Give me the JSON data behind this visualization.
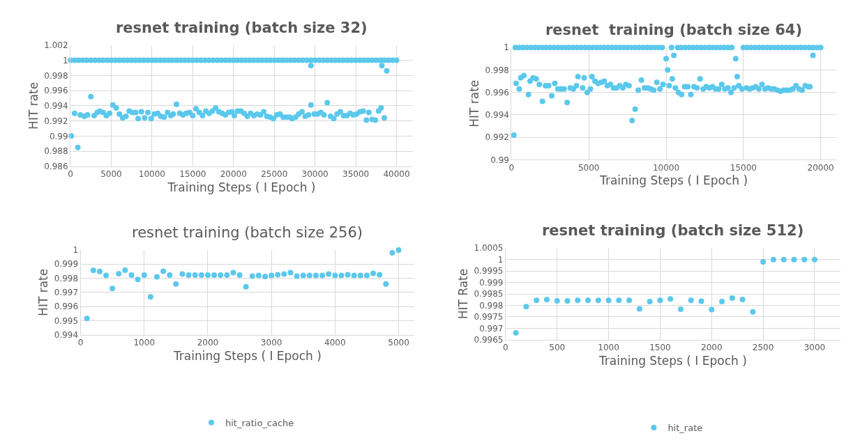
{
  "chart_data": [
    {
      "type": "scatter",
      "title": "resnet training (batch size 32)",
      "xlabel": "Training Steps ( I Epoch )",
      "ylabel": "HIT rate",
      "xlim": [
        0,
        42000
      ],
      "xticks": [
        0,
        5000,
        10000,
        15000,
        20000,
        25000,
        30000,
        35000,
        40000
      ],
      "ylim": [
        0.986,
        1.002
      ],
      "yticks": [
        0.986,
        0.988,
        0.99,
        0.992,
        0.994,
        0.996,
        0.998,
        1,
        1.002
      ],
      "grid": true,
      "marker": "circle",
      "series": [
        {
          "color": "#5bc8ec",
          "x": [
            0,
            500,
            1000,
            1500,
            2000,
            2500,
            3000,
            3500,
            4000,
            4500,
            5000,
            5500,
            6000,
            6500,
            7000,
            7500,
            8000,
            8500,
            9000,
            9500,
            10000,
            10500,
            11000,
            11500,
            12000,
            12500,
            13000,
            13500,
            14000,
            14500,
            15000,
            15500,
            16000,
            16500,
            17000,
            17500,
            18000,
            18500,
            19000,
            19500,
            20000,
            20500,
            21000,
            21500,
            22000,
            22500,
            23000,
            23500,
            24000,
            24500,
            25000,
            25500,
            26000,
            26500,
            27000,
            27500,
            28000,
            28500,
            29000,
            29500,
            30000,
            30500,
            31000,
            31500,
            32000,
            32500,
            33000,
            33500,
            34000,
            34500,
            35000,
            35500,
            36000,
            36500,
            37000,
            37500,
            38000,
            38500,
            39000,
            39500,
            40000
          ],
          "values": [
            1,
            1,
            1,
            1,
            1,
            1,
            1,
            1,
            1,
            1,
            1,
            1,
            1,
            1,
            1,
            1,
            1,
            1,
            1,
            1,
            1,
            1,
            1,
            1,
            1,
            1,
            1,
            1,
            1,
            1,
            1,
            1,
            1,
            1,
            1,
            1,
            1,
            1,
            1,
            1,
            1,
            1,
            1,
            1,
            1,
            1,
            1,
            1,
            1,
            1,
            1,
            1,
            1,
            1,
            1,
            1,
            1,
            1,
            1,
            1,
            1,
            1,
            1,
            1,
            1,
            1,
            1,
            1,
            1,
            1,
            1,
            1,
            1,
            1,
            1,
            1,
            1,
            1,
            1,
            1,
            1
          ]
        },
        {
          "color": "#5bc8ec",
          "x": [
            100,
            500,
            900,
            1200,
            1700,
            2100,
            2500,
            2900,
            3300,
            3600,
            4000,
            4400,
            4800,
            5200,
            5600,
            6000,
            6400,
            6800,
            7200,
            7600,
            8000,
            8300,
            8700,
            9100,
            9500,
            9900,
            10300,
            10700,
            11100,
            11500,
            11900,
            12300,
            12600,
            13000,
            13400,
            13800,
            14200,
            14600,
            15000,
            15400,
            15800,
            16200,
            16600,
            17000,
            17400,
            17800,
            18200,
            18600,
            19000,
            19400,
            19800,
            20100,
            20500,
            20900,
            21300,
            21700,
            22100,
            22500,
            22900,
            23300,
            23700,
            24100,
            24500,
            24900,
            25300,
            25700,
            26100,
            26500,
            26900,
            27200,
            27600,
            28000,
            28400,
            28800,
            29200,
            29500,
            29900,
            30300,
            30700,
            31100,
            31500,
            31900,
            32300,
            32700,
            33100,
            33500,
            33900,
            34300,
            34700,
            35100,
            35500,
            35900,
            36300,
            36600,
            37000,
            37400,
            37800,
            38100,
            38500,
            29500,
            38200,
            38800
          ],
          "values": [
            0.99,
            0.993,
            0.9885,
            0.9928,
            0.9926,
            0.9928,
            0.9952,
            0.9927,
            0.9931,
            0.9933,
            0.9931,
            0.9927,
            0.993,
            0.9941,
            0.9937,
            0.9929,
            0.9924,
            0.9926,
            0.9933,
            0.9931,
            0.9931,
            0.9923,
            0.9932,
            0.9924,
            0.9931,
            0.9923,
            0.9929,
            0.993,
            0.9926,
            0.9925,
            0.9931,
            0.9927,
            0.9929,
            0.9942,
            0.993,
            0.9928,
            0.993,
            0.9931,
            0.9927,
            0.9936,
            0.9931,
            0.9927,
            0.9933,
            0.993,
            0.9933,
            0.9937,
            0.9932,
            0.993,
            0.9928,
            0.9931,
            0.9932,
            0.9927,
            0.9933,
            0.9933,
            0.993,
            0.9926,
            0.993,
            0.9927,
            0.9929,
            0.9928,
            0.9932,
            0.9926,
            0.9925,
            0.9923,
            0.9928,
            0.9929,
            0.9925,
            0.9925,
            0.9925,
            0.9923,
            0.9925,
            0.9929,
            0.9932,
            0.9926,
            0.9928,
            0.9941,
            0.9929,
            0.9929,
            0.9931,
            0.9928,
            0.9944,
            0.9926,
            0.9923,
            0.9929,
            0.9932,
            0.9927,
            0.9927,
            0.993,
            0.9928,
            0.9929,
            0.9932,
            0.9933,
            0.9921,
            0.9931,
            0.9922,
            0.9921,
            0.9933,
            0.9937,
            0.9924,
            0.9993,
            0.9993,
            0.9986
          ]
        }
      ]
    },
    {
      "type": "scatter",
      "title": "resnet  training (batch size 64)",
      "xlabel": "Training Steps ( I Epoch )",
      "ylabel": "HIT rate",
      "xlim": [
        0,
        21000
      ],
      "xticks": [
        0,
        5000,
        10000,
        15000,
        20000
      ],
      "ylim": [
        0.99,
        1
      ],
      "yticks": [
        0.99,
        0.992,
        0.994,
        0.996,
        0.998,
        1
      ],
      "grid": true,
      "marker": "circle",
      "series": [
        {
          "color": "#5bc8ec",
          "x": [
            250,
            500,
            750,
            1000,
            1250,
            1500,
            1750,
            2000,
            2250,
            2500,
            2750,
            3000,
            3250,
            3500,
            3750,
            4000,
            4250,
            4500,
            4750,
            5000,
            5250,
            5500,
            5750,
            6000,
            6250,
            6500,
            6750,
            7000,
            7250,
            7500,
            7750,
            8000,
            8250,
            8500,
            8750,
            9000,
            9250,
            9500,
            9750,
            10350,
            10750,
            11000,
            11250,
            11500,
            11750,
            12000,
            12250,
            12500,
            12750,
            13000,
            13250,
            13500,
            13750,
            14000,
            14250,
            15000,
            15250,
            15500,
            15750,
            16000,
            16250,
            16500,
            16750,
            17000,
            17250,
            17500,
            17750,
            18000,
            18250,
            18500,
            18750,
            19000,
            19250,
            19500,
            19750,
            20000
          ],
          "values": [
            1,
            1,
            1,
            1,
            1,
            1,
            1,
            1,
            1,
            1,
            1,
            1,
            1,
            1,
            1,
            1,
            1,
            1,
            1,
            1,
            1,
            1,
            1,
            1,
            1,
            1,
            1,
            1,
            1,
            1,
            1,
            1,
            1,
            1,
            1,
            1,
            1,
            1,
            1,
            1,
            1,
            1,
            1,
            1,
            1,
            1,
            1,
            1,
            1,
            1,
            1,
            1,
            1,
            1,
            1,
            1,
            1,
            1,
            1,
            1,
            1,
            1,
            1,
            1,
            1,
            1,
            1,
            1,
            1,
            1,
            1,
            1,
            1,
            1,
            1,
            1
          ]
        },
        {
          "color": "#5bc8ec",
          "x": [
            150,
            300,
            500,
            600,
            800,
            1100,
            1200,
            1400,
            1600,
            1800,
            2000,
            2200,
            2400,
            2600,
            2800,
            3000,
            3200,
            3400,
            3600,
            3800,
            4000,
            4200,
            4300,
            4600,
            4700,
            4900,
            5100,
            5200,
            5400,
            5600,
            5800,
            6000,
            6200,
            6400,
            6600,
            6800,
            7000,
            7200,
            7400,
            7600,
            7800,
            8000,
            8200,
            8400,
            8600,
            8800,
            9000,
            9200,
            9400,
            9600,
            9800,
            10000,
            10100,
            10200,
            10400,
            10500,
            10600,
            10800,
            11000,
            11200,
            11400,
            11600,
            11800,
            12000,
            12200,
            12400,
            12600,
            12800,
            13000,
            13200,
            13400,
            13600,
            13800,
            14000,
            14200,
            14400,
            14500,
            14600,
            14700,
            14900,
            15200,
            15400,
            15600,
            15800,
            16000,
            16200,
            16400,
            16600,
            16800,
            17000,
            17200,
            17400,
            17600,
            17800,
            18000,
            18200,
            18400,
            18600,
            18800,
            19000,
            19200,
            19300,
            19500
          ],
          "values": [
            0.9922,
            0.9968,
            0.9963,
            0.9973,
            0.9975,
            0.9958,
            0.997,
            0.9973,
            0.9972,
            0.9967,
            0.9952,
            0.9966,
            0.9966,
            0.9957,
            0.9968,
            0.9963,
            0.9963,
            0.9963,
            0.9951,
            0.9964,
            0.9963,
            0.9966,
            0.9974,
            0.9964,
            0.9973,
            0.996,
            0.9963,
            0.9974,
            0.997,
            0.9968,
            0.9969,
            0.997,
            0.9966,
            0.9967,
            0.9964,
            0.9964,
            0.9966,
            0.9964,
            0.9967,
            0.9966,
            0.9935,
            0.9945,
            0.9962,
            0.9971,
            0.9964,
            0.9964,
            0.9963,
            0.9962,
            0.9969,
            0.9963,
            0.9967,
            0.999,
            0.998,
            0.9966,
            0.9972,
            0.9993,
            0.9964,
            0.996,
            0.9958,
            0.9965,
            0.9965,
            0.9958,
            0.9965,
            0.9964,
            0.9972,
            0.9963,
            0.9965,
            0.9964,
            0.9965,
            0.9963,
            0.9963,
            0.9967,
            0.9963,
            0.9964,
            0.996,
            0.9964,
            0.999,
            0.9974,
            0.9966,
            0.9963,
            0.9964,
            0.9963,
            0.9964,
            0.9965,
            0.9963,
            0.9967,
            0.9963,
            0.9964,
            0.9963,
            0.9963,
            0.9962,
            0.9961,
            0.9962,
            0.9962,
            0.9962,
            0.9963,
            0.9966,
            0.9963,
            0.9962,
            0.9966,
            0.9965,
            0.9965,
            0.9993
          ]
        }
      ]
    },
    {
      "type": "scatter",
      "title": "resnet training (batch size 256)",
      "xlabel": "Training Steps ( I Epoch )",
      "ylabel": "HIT rate",
      "xlim": [
        0,
        5250
      ],
      "xticks": [
        0,
        1000,
        2000,
        3000,
        4000,
        5000
      ],
      "ylim": [
        0.994,
        1
      ],
      "yticks": [
        0.994,
        0.995,
        0.996,
        0.997,
        0.998,
        0.999,
        1
      ],
      "grid": true,
      "marker": "circle",
      "legend": "bottom",
      "series": [
        {
          "name": "hit_ratio_cache",
          "color": "#5bc8ec",
          "x": [
            100,
            200,
            300,
            400,
            500,
            600,
            700,
            800,
            900,
            1000,
            1100,
            1200,
            1300,
            1400,
            1500,
            1600,
            1700,
            1800,
            1900,
            2000,
            2100,
            2200,
            2300,
            2400,
            2500,
            2600,
            2700,
            2800,
            2900,
            3000,
            3100,
            3200,
            3300,
            3400,
            3500,
            3600,
            3700,
            3800,
            3900,
            4000,
            4100,
            4200,
            4300,
            4400,
            4500,
            4600,
            4700,
            4800,
            4900,
            5000
          ],
          "values": [
            0.99515,
            0.99855,
            0.99848,
            0.9982,
            0.99728,
            0.99832,
            0.99857,
            0.99822,
            0.99792,
            0.99822,
            0.99668,
            0.9981,
            0.9985,
            0.99822,
            0.9976,
            0.9983,
            0.99822,
            0.99822,
            0.99822,
            0.99822,
            0.99822,
            0.99822,
            0.99822,
            0.9984,
            0.99822,
            0.9974,
            0.99815,
            0.9982,
            0.99813,
            0.9982,
            0.99825,
            0.9983,
            0.9984,
            0.99815,
            0.9982,
            0.9982,
            0.9982,
            0.9982,
            0.9983,
            0.9982,
            0.9982,
            0.99825,
            0.9982,
            0.9982,
            0.9982,
            0.99835,
            0.99825,
            0.9976,
            0.9998,
            1
          ]
        }
      ]
    },
    {
      "type": "scatter",
      "title": "resnet training (batch size 512)",
      "xlabel": "Training Steps ( I Epoch )",
      "ylabel": "HIT Rate",
      "xlim": [
        0,
        3250
      ],
      "xticks": [
        0,
        500,
        1000,
        1500,
        2000,
        2500,
        3000
      ],
      "ylim": [
        0.9965,
        1.0005
      ],
      "yticks": [
        0.9965,
        0.997,
        0.9975,
        0.998,
        0.9985,
        0.999,
        0.9995,
        1,
        1.0005
      ],
      "grid": true,
      "marker": "circle",
      "legend": "bottom",
      "series": [
        {
          "name": "hit_rate",
          "color": "#5bc8ec",
          "x": [
            100,
            200,
            300,
            400,
            500,
            600,
            700,
            800,
            900,
            1000,
            1100,
            1200,
            1300,
            1400,
            1500,
            1600,
            1700,
            1800,
            1900,
            2000,
            2100,
            2200,
            2300,
            2400,
            2500,
            2600,
            2700,
            2800,
            2900,
            3000
          ],
          "values": [
            0.9968,
            0.99795,
            0.99822,
            0.99825,
            0.9982,
            0.9982,
            0.99822,
            0.99822,
            0.99822,
            0.99822,
            0.99822,
            0.99822,
            0.99785,
            0.99817,
            0.99822,
            0.99828,
            0.99783,
            0.99822,
            0.99818,
            0.99782,
            0.99817,
            0.99832,
            0.99826,
            0.99772,
            0.9999,
            1,
            1,
            1,
            1,
            1
          ]
        }
      ]
    }
  ]
}
